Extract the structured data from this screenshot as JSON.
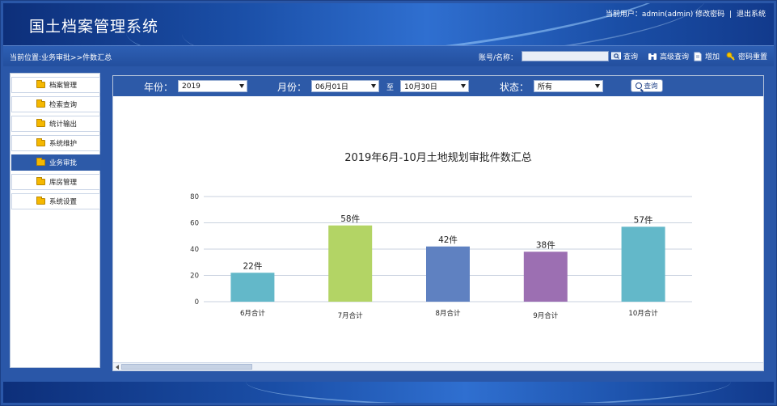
{
  "header": {
    "title": "国土档案管理系统",
    "user_label": "当前用户：admin(admin)",
    "change_password": "修改密码",
    "separator": "|",
    "logout": "退出系统"
  },
  "toolbar": {
    "breadcrumb": "当前位置:业务审批>>件数汇总",
    "account_label": "账号/名称：",
    "account_value": "",
    "query_label": "查询",
    "advanced_query_label": "高级查询",
    "add_label": "增加",
    "reset_password_label": "密码重置"
  },
  "sidebar": {
    "items": [
      {
        "label": "档案管理"
      },
      {
        "label": "检索查询"
      },
      {
        "label": "统计输出"
      },
      {
        "label": "系统维护"
      },
      {
        "label": "业务审批"
      },
      {
        "label": "库房管理"
      },
      {
        "label": "系统设置"
      }
    ],
    "active_index": 4
  },
  "filters": {
    "year_label": "年份：",
    "year_value": "2019",
    "month_label": "月份：",
    "month_start": "06月01日",
    "to_label": "至",
    "month_end": "10月30日",
    "status_label": "状态：",
    "status_value": "所有",
    "search_label": "查询"
  },
  "chart_data": {
    "type": "bar",
    "title": "2019年6月-10月土地规划审批件数汇总",
    "categories": [
      "6月合计",
      "7月合计",
      "8月合计",
      "9月合计",
      "10月合计"
    ],
    "values": [
      22,
      58,
      42,
      38,
      57
    ],
    "data_labels": [
      "22件",
      "58件",
      "42件",
      "38件",
      "57件"
    ],
    "colors": [
      "#63b8c9",
      "#b3d465",
      "#5f81c1",
      "#9c6fb2",
      "#63b8c9"
    ],
    "y_ticks": [
      0,
      20,
      40,
      60,
      80
    ],
    "ylim": [
      0,
      80
    ],
    "grid": true,
    "xlabel": "",
    "ylabel": ""
  }
}
